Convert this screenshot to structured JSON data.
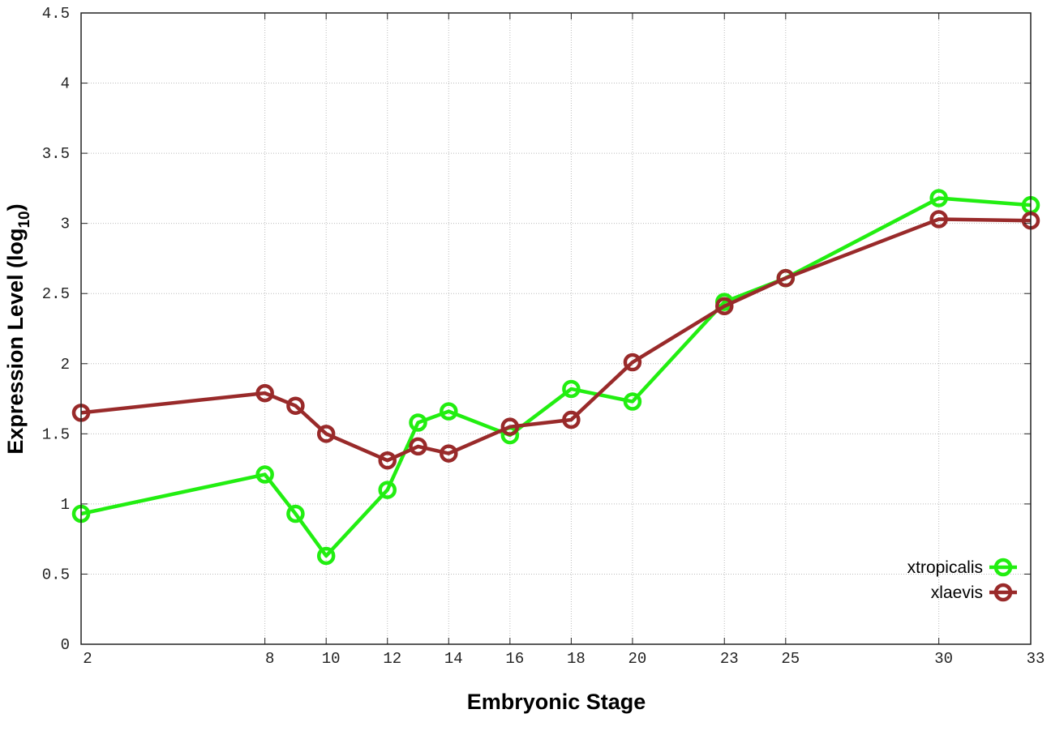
{
  "chart_data": {
    "type": "line",
    "title": "",
    "xlabel": "Embryonic Stage",
    "ylabel": "Expression Level (log",
    "ylabel_sub": "10",
    "ylabel_close": ")",
    "xlim": [
      2,
      33
    ],
    "ylim": [
      0,
      4.5
    ],
    "grid": true,
    "legend_position": "bottom-right",
    "x_ticks": [
      2,
      8,
      10,
      12,
      14,
      16,
      18,
      20,
      23,
      25,
      30,
      33
    ],
    "x_tick_labels": [
      "2",
      "8",
      "10",
      "12",
      "14",
      "16",
      "18",
      "20",
      "23",
      "25",
      "30",
      "33"
    ],
    "y_ticks": [
      0,
      0.5,
      1,
      1.5,
      2,
      2.5,
      3,
      3.5,
      4,
      4.5
    ],
    "y_tick_labels": [
      "0",
      "0.5",
      "1",
      "1.5",
      "2",
      "2.5",
      "3",
      "3.5",
      "4",
      "4.5"
    ],
    "x": [
      2,
      8,
      9,
      10,
      12,
      13,
      14,
      16,
      18,
      20,
      23,
      25,
      30,
      33
    ],
    "series": [
      {
        "name": "xtropicalis",
        "color": "#22ee11",
        "values": [
          0.93,
          1.21,
          0.93,
          0.63,
          1.1,
          1.58,
          1.66,
          1.49,
          1.82,
          1.73,
          2.44,
          2.61,
          3.18,
          3.13
        ]
      },
      {
        "name": "xlaevis",
        "color": "#992a2a",
        "values": [
          1.65,
          1.79,
          1.7,
          1.5,
          1.31,
          1.41,
          1.36,
          1.55,
          1.6,
          2.01,
          2.41,
          2.61,
          3.03,
          3.02
        ]
      }
    ]
  }
}
